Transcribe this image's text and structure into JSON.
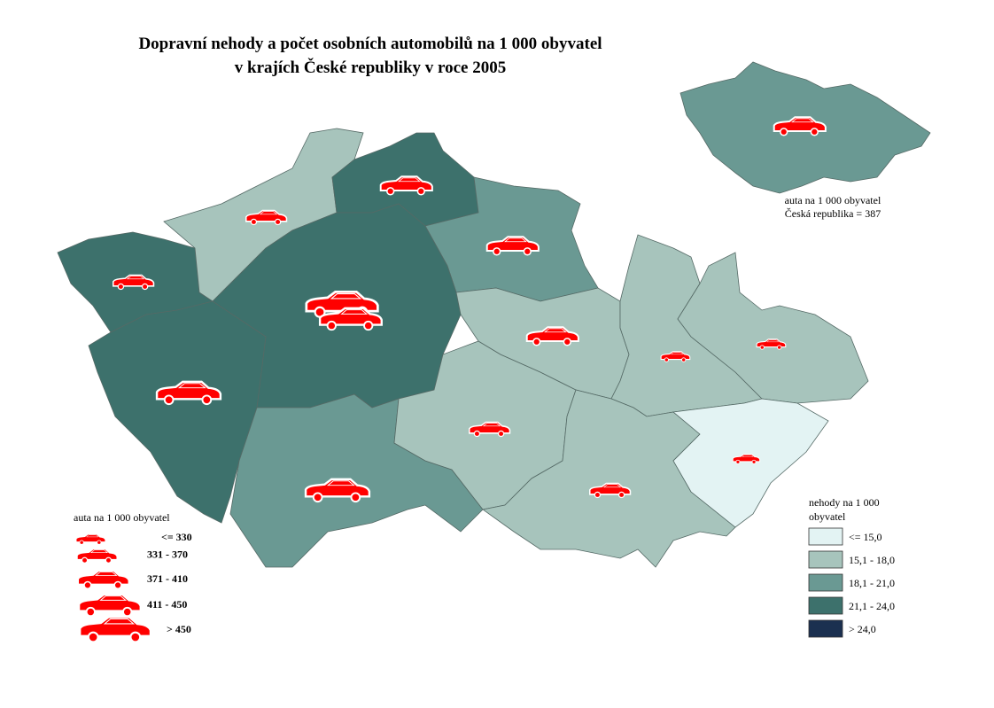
{
  "header": {
    "title_lines": [
      "Dopravní nehody a počet osobních automobilů na 1 000 obyvatel",
      "v krajích České republiky v roce 2005"
    ]
  },
  "inset": {
    "lines": [
      "auta na 1 000 obyvatel",
      "Česká republika = 387"
    ]
  },
  "car_legend": {
    "title": "auta na 1 000 obyvatel",
    "items": [
      "<= 330",
      "331 - 370",
      "371 - 410",
      "411 - 450",
      "> 450"
    ]
  },
  "accident_legend": {
    "title_lines": [
      "nehody na 1 000",
      "obyvatel"
    ],
    "items": [
      {
        "label": "<= 15,0",
        "color": "#e3f3f3"
      },
      {
        "label": "15,1 - 18,0",
        "color": "#a7c4bc"
      },
      {
        "label": "18,1 - 21,0",
        "color": "#6a9993"
      },
      {
        "label": "21,1 - 24,0",
        "color": "#3d716c"
      },
      {
        "label": "> 24,0",
        "color": "#1b3050"
      }
    ]
  }
}
